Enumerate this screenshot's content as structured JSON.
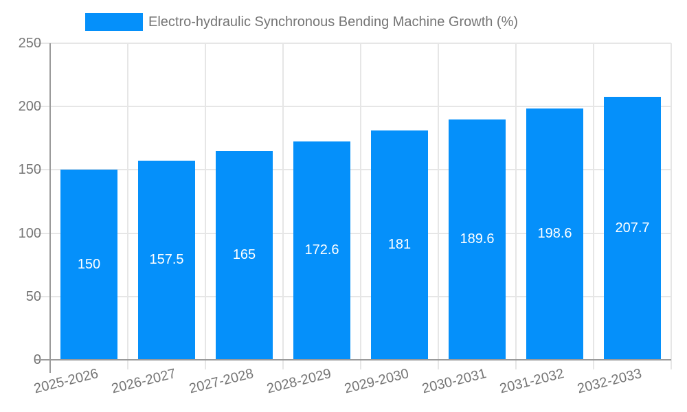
{
  "legend": {
    "label": "Electro-hydraulic Synchronous Bending Machine Growth (%)"
  },
  "chart_data": {
    "type": "bar",
    "title": "Electro-hydraulic Synchronous Bending Machine Growth (%)",
    "categories": [
      "2025-2026",
      "2026-2027",
      "2027-2028",
      "2028-2029",
      "2029-2030",
      "2030-2031",
      "2031-2032",
      "2032-2033"
    ],
    "values": [
      150,
      157.5,
      165,
      172.6,
      181,
      189.6,
      198.6,
      207.7
    ],
    "value_labels": [
      "150",
      "157.5",
      "165",
      "172.6",
      "181",
      "189.6",
      "198.6",
      "207.7"
    ],
    "xlabel": "",
    "ylabel": "",
    "ylim": [
      0,
      250
    ],
    "y_ticks": [
      0,
      50,
      100,
      150,
      200,
      250
    ],
    "grid": true,
    "legend_position": "top",
    "value_label_position": "inside-center",
    "colors": {
      "bar": "#0590fa",
      "grid": "#e6e6e6",
      "axis": "#9a9a9a",
      "tick_text": "#757575",
      "value_text": "#ffffff",
      "background": "#ffffff"
    }
  }
}
